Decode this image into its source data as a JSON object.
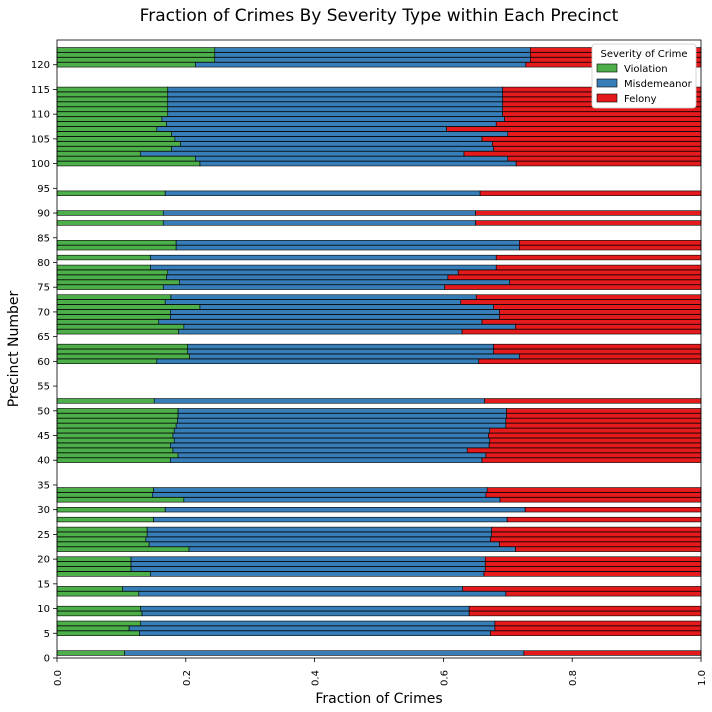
{
  "chart_data": {
    "type": "bar",
    "orientation": "horizontal",
    "stacked": true,
    "title": "Fraction of Crimes By Severity Type within Each Precinct",
    "xlabel": "Fraction of Crimes",
    "ylabel": "Precinct Number",
    "xlim": [
      0,
      1
    ],
    "ylim": [
      0,
      125
    ],
    "xticks": [
      "0.0",
      "0.2",
      "0.4",
      "0.6",
      "0.8",
      "1.0"
    ],
    "yticks": [
      "0",
      "5",
      "10",
      "15",
      "20",
      "25",
      "30",
      "35",
      "40",
      "45",
      "50",
      "55",
      "60",
      "65",
      "70",
      "75",
      "80",
      "85",
      "90",
      "95",
      "100",
      "105",
      "110",
      "115",
      "120"
    ],
    "legend": {
      "title": "Severity of Crime",
      "placement": "top-right",
      "entries": [
        "Violation",
        "Misdemeanor",
        "Felony"
      ]
    },
    "colors": {
      "Violation": "#4daf4a",
      "Misdemeanor": "#377eb8",
      "Felony": "#e41a1c"
    },
    "categories": [
      1,
      5,
      6,
      7,
      9,
      10,
      13,
      14,
      17,
      18,
      19,
      20,
      22,
      23,
      24,
      25,
      26,
      28,
      30,
      32,
      33,
      34,
      40,
      41,
      42,
      43,
      44,
      45,
      46,
      47,
      48,
      49,
      50,
      52,
      60,
      61,
      62,
      63,
      66,
      67,
      68,
      69,
      70,
      71,
      72,
      73,
      75,
      76,
      77,
      78,
      79,
      81,
      83,
      84,
      88,
      90,
      94,
      100,
      101,
      102,
      103,
      104,
      105,
      106,
      107,
      108,
      109,
      110,
      111,
      112,
      113,
      114,
      115,
      120,
      121,
      122,
      123
    ],
    "series": [
      {
        "name": "Violation",
        "values": [
          0.105,
          0.128,
          0.112,
          0.13,
          0.132,
          0.13,
          0.127,
          0.102,
          0.145,
          0.115,
          0.115,
          0.115,
          0.205,
          0.143,
          0.138,
          0.14,
          0.14,
          0.15,
          0.168,
          0.197,
          0.148,
          0.15,
          0.176,
          0.188,
          0.18,
          0.176,
          0.182,
          0.18,
          0.182,
          0.185,
          0.187,
          0.188,
          0.188,
          0.151,
          0.155,
          0.206,
          0.203,
          0.203,
          0.189,
          0.197,
          0.158,
          0.176,
          0.176,
          0.222,
          0.168,
          0.177,
          0.165,
          0.19,
          0.17,
          0.172,
          0.145,
          0.145,
          0.185,
          0.185,
          0.165,
          0.165,
          0.168,
          0.222,
          0.215,
          0.13,
          0.178,
          0.192,
          0.183,
          0.178,
          0.155,
          0.17,
          0.163,
          0.172,
          0.172,
          0.172,
          0.172,
          0.172,
          0.172,
          0.215,
          0.245,
          0.245,
          0.245
        ]
      },
      {
        "name": "Misdemeanor",
        "values": [
          0.62,
          0.545,
          0.568,
          0.55,
          0.508,
          0.51,
          0.57,
          0.528,
          0.518,
          0.55,
          0.55,
          0.55,
          0.507,
          0.544,
          0.535,
          0.535,
          0.535,
          0.549,
          0.559,
          0.491,
          0.518,
          0.518,
          0.484,
          0.478,
          0.457,
          0.495,
          0.49,
          0.49,
          0.49,
          0.512,
          0.51,
          0.51,
          0.51,
          0.513,
          0.5,
          0.512,
          0.475,
          0.475,
          0.44,
          0.515,
          0.502,
          0.511,
          0.511,
          0.456,
          0.459,
          0.474,
          0.437,
          0.513,
          0.437,
          0.451,
          0.537,
          0.537,
          0.533,
          0.533,
          0.485,
          0.485,
          0.489,
          0.491,
          0.485,
          0.502,
          0.5,
          0.484,
          0.477,
          0.522,
          0.45,
          0.512,
          0.532,
          0.52,
          0.52,
          0.52,
          0.52,
          0.52,
          0.52,
          0.513,
          0.49,
          0.49,
          0.49
        ]
      },
      {
        "name": "Felony",
        "values": [
          0.275,
          0.327,
          0.32,
          0.32,
          0.36,
          0.36,
          0.303,
          0.37,
          0.337,
          0.335,
          0.335,
          0.335,
          0.288,
          0.313,
          0.327,
          0.325,
          0.325,
          0.301,
          0.273,
          0.312,
          0.334,
          0.332,
          0.34,
          0.334,
          0.363,
          0.329,
          0.328,
          0.33,
          0.328,
          0.303,
          0.303,
          0.302,
          0.302,
          0.336,
          0.345,
          0.282,
          0.322,
          0.322,
          0.371,
          0.288,
          0.34,
          0.313,
          0.313,
          0.322,
          0.373,
          0.349,
          0.398,
          0.297,
          0.393,
          0.377,
          0.318,
          0.318,
          0.282,
          0.282,
          0.35,
          0.35,
          0.343,
          0.287,
          0.3,
          0.368,
          0.322,
          0.324,
          0.34,
          0.3,
          0.395,
          0.318,
          0.305,
          0.308,
          0.308,
          0.308,
          0.308,
          0.308,
          0.308,
          0.272,
          0.265,
          0.265,
          0.265
        ]
      }
    ]
  }
}
